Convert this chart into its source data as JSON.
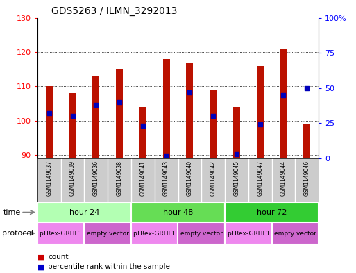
{
  "title": "GDS5263 / ILMN_3292013",
  "samples": [
    "GSM1149037",
    "GSM1149039",
    "GSM1149036",
    "GSM1149038",
    "GSM1149041",
    "GSM1149043",
    "GSM1149040",
    "GSM1149042",
    "GSM1149045",
    "GSM1149047",
    "GSM1149044",
    "GSM1149046"
  ],
  "counts": [
    110,
    108,
    113,
    115,
    104,
    118,
    117,
    109,
    104,
    116,
    121,
    99
  ],
  "percentile_ranks": [
    32,
    30,
    38,
    40,
    23,
    2,
    47,
    30,
    3,
    24,
    45,
    50
  ],
  "ylim_left": [
    89,
    130
  ],
  "ylim_right": [
    0,
    100
  ],
  "yticks_left": [
    90,
    100,
    110,
    120,
    130
  ],
  "yticks_right": [
    0,
    25,
    50,
    75,
    100
  ],
  "ytick_labels_right": [
    "0",
    "25",
    "50",
    "75",
    "100%"
  ],
  "time_groups": [
    {
      "label": "hour 24",
      "start": 0,
      "end": 4,
      "color": "#b3ffb3"
    },
    {
      "label": "hour 48",
      "start": 4,
      "end": 8,
      "color": "#66dd55"
    },
    {
      "label": "hour 72",
      "start": 8,
      "end": 12,
      "color": "#33cc33"
    }
  ],
  "protocol_groups": [
    {
      "label": "pTRex-GRHL1",
      "start": 0,
      "end": 2,
      "color": "#ee88ee"
    },
    {
      "label": "empty vector",
      "start": 2,
      "end": 4,
      "color": "#cc66cc"
    },
    {
      "label": "pTRex-GRHL1",
      "start": 4,
      "end": 6,
      "color": "#ee88ee"
    },
    {
      "label": "empty vector",
      "start": 6,
      "end": 8,
      "color": "#cc66cc"
    },
    {
      "label": "pTRex-GRHL1",
      "start": 8,
      "end": 10,
      "color": "#ee88ee"
    },
    {
      "label": "empty vector",
      "start": 10,
      "end": 12,
      "color": "#cc66cc"
    }
  ],
  "bar_color": "#bb1100",
  "dot_color": "#0000bb",
  "bar_width": 0.3,
  "dot_size": 20,
  "sample_box_color": "#cccccc",
  "legend_bar_color": "#cc0000",
  "legend_dot_color": "#0000cc"
}
